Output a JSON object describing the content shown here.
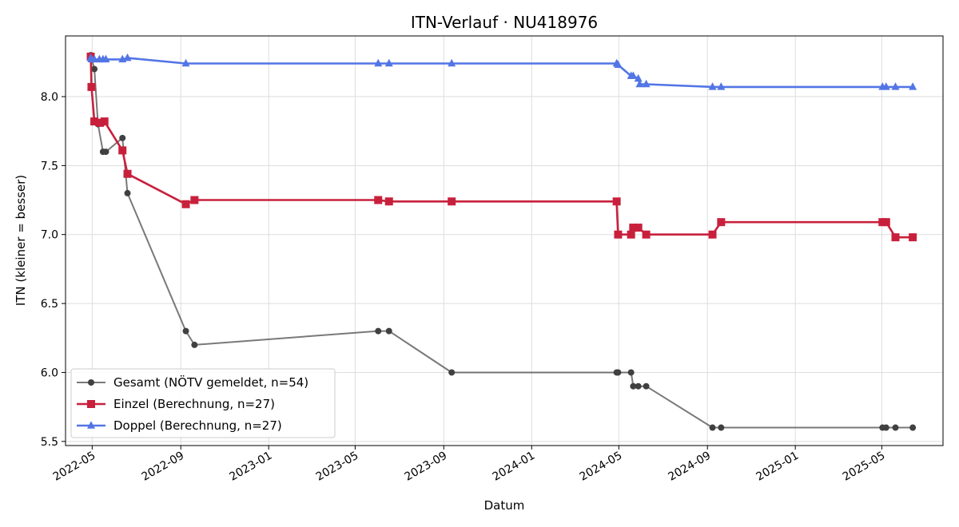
{
  "chart_data": {
    "type": "line",
    "title": "ITN-Verlauf · NU418976",
    "xlabel": "Datum",
    "ylabel": "ITN  (kleiner = besser)",
    "x_type": "date",
    "xlim": [
      "2022-03-25",
      "2025-07-25"
    ],
    "ylim": [
      5.47,
      8.44
    ],
    "x_ticks": [
      "2022-05",
      "2022-09",
      "2023-01",
      "2023-05",
      "2023-09",
      "2024-01",
      "2024-05",
      "2024-09",
      "2025-01",
      "2025-05"
    ],
    "y_ticks": [
      "5.5",
      "6.0",
      "6.5",
      "7.0",
      "7.5",
      "8.0"
    ],
    "grid": true,
    "legend_position": "lower-left",
    "series": [
      {
        "name": "Gesamt (NÖTV gemeldet, n=54)",
        "color": "#404040",
        "marker": "circle",
        "points": [
          [
            "2022-04-29",
            8.3
          ],
          [
            "2022-04-30",
            8.28
          ],
          [
            "2022-05-04",
            8.2
          ],
          [
            "2022-05-09",
            7.8
          ],
          [
            "2022-05-16",
            7.6
          ],
          [
            "2022-05-20",
            7.6
          ],
          [
            "2022-06-12",
            7.7
          ],
          [
            "2022-06-19",
            7.3
          ],
          [
            "2022-09-08",
            6.3
          ],
          [
            "2022-09-20",
            6.2
          ],
          [
            "2023-06-02",
            6.3
          ],
          [
            "2023-06-17",
            6.3
          ],
          [
            "2023-09-12",
            6.0
          ],
          [
            "2024-04-28",
            6.0
          ],
          [
            "2024-04-30",
            6.0
          ],
          [
            "2024-05-18",
            6.0
          ],
          [
            "2024-05-21",
            5.9
          ],
          [
            "2024-05-28",
            5.9
          ],
          [
            "2024-06-08",
            5.9
          ],
          [
            "2024-09-08",
            5.6
          ],
          [
            "2024-09-20",
            5.6
          ],
          [
            "2025-05-02",
            5.6
          ],
          [
            "2025-05-07",
            5.6
          ],
          [
            "2025-05-20",
            5.6
          ],
          [
            "2025-06-13",
            5.6
          ]
        ]
      },
      {
        "name": "Einzel (Berechnung, n=27)",
        "color": "#c8203c",
        "marker": "square",
        "points": [
          [
            "2022-04-29",
            8.29
          ],
          [
            "2022-04-30",
            8.07
          ],
          [
            "2022-05-04",
            7.82
          ],
          [
            "2022-05-12",
            7.81
          ],
          [
            "2022-05-18",
            7.82
          ],
          [
            "2022-06-12",
            7.61
          ],
          [
            "2022-06-19",
            7.44
          ],
          [
            "2022-09-08",
            7.22
          ],
          [
            "2022-09-20",
            7.25
          ],
          [
            "2023-06-02",
            7.25
          ],
          [
            "2023-06-17",
            7.24
          ],
          [
            "2023-09-12",
            7.24
          ],
          [
            "2024-04-28",
            7.24
          ],
          [
            "2024-04-30",
            7.0
          ],
          [
            "2024-05-18",
            7.0
          ],
          [
            "2024-05-21",
            7.05
          ],
          [
            "2024-05-28",
            7.05
          ],
          [
            "2024-06-08",
            7.0
          ],
          [
            "2024-09-08",
            7.0
          ],
          [
            "2024-09-20",
            7.09
          ],
          [
            "2025-05-02",
            7.09
          ],
          [
            "2025-05-07",
            7.09
          ],
          [
            "2025-05-20",
            6.98
          ],
          [
            "2025-06-13",
            6.98
          ]
        ]
      },
      {
        "name": "Doppel (Berechnung, n=27)",
        "color": "#5275e6",
        "marker": "triangle",
        "points": [
          [
            "2022-04-29",
            8.28
          ],
          [
            "2022-04-30",
            8.27
          ],
          [
            "2022-05-04",
            8.27
          ],
          [
            "2022-05-11",
            8.27
          ],
          [
            "2022-05-16",
            8.27
          ],
          [
            "2022-05-20",
            8.27
          ],
          [
            "2022-06-12",
            8.27
          ],
          [
            "2022-06-19",
            8.28
          ],
          [
            "2022-09-08",
            8.24
          ],
          [
            "2023-06-02",
            8.24
          ],
          [
            "2023-06-17",
            8.24
          ],
          [
            "2023-09-12",
            8.24
          ],
          [
            "2024-04-28",
            8.24
          ],
          [
            "2024-04-30",
            8.23
          ],
          [
            "2024-05-18",
            8.15
          ],
          [
            "2024-05-21",
            8.15
          ],
          [
            "2024-05-28",
            8.13
          ],
          [
            "2024-05-30",
            8.09
          ],
          [
            "2024-06-08",
            8.09
          ],
          [
            "2024-09-08",
            8.07
          ],
          [
            "2024-09-20",
            8.07
          ],
          [
            "2025-05-02",
            8.07
          ],
          [
            "2025-05-07",
            8.07
          ],
          [
            "2025-05-20",
            8.07
          ],
          [
            "2025-06-13",
            8.07
          ]
        ]
      }
    ]
  }
}
